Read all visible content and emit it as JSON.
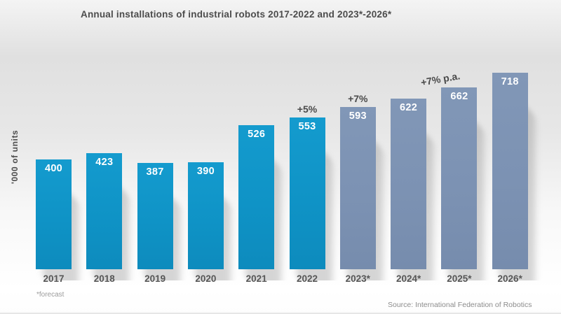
{
  "title": "Annual installations of industrial robots 2017-2022 and 2023*-2026*",
  "y_axis_label": "'000 of units",
  "footnote": "*forecast",
  "source": "Source: International Federation of Robotics",
  "colors": {
    "actual_bar": "#0F93C6",
    "forecast_bar": "#7C92B3",
    "value_label": "#FFFFFF",
    "heading_text": "#4C4C4C",
    "axis_text": "#565656"
  },
  "chart_data": {
    "type": "bar",
    "title": "Annual installations of industrial robots 2017-2022 and 2023*-2026*",
    "ylabel": "'000 of units",
    "xlabel": "",
    "categories": [
      "2017",
      "2018",
      "2019",
      "2020",
      "2021",
      "2022",
      "2023*",
      "2024*",
      "2025*",
      "2026*"
    ],
    "values": [
      400,
      423,
      387,
      390,
      526,
      553,
      593,
      622,
      662,
      718
    ],
    "series": [
      {
        "name": "actual",
        "categories": [
          "2017",
          "2018",
          "2019",
          "2020",
          "2021",
          "2022"
        ],
        "values": [
          400,
          423,
          387,
          390,
          526,
          553
        ]
      },
      {
        "name": "forecast",
        "categories": [
          "2023*",
          "2024*",
          "2025*",
          "2026*"
        ],
        "values": [
          593,
          622,
          662,
          718
        ]
      }
    ],
    "forecast_indices": [
      6,
      7,
      8,
      9
    ],
    "annotations": [
      {
        "label": "+5%",
        "bar_index": 5,
        "rotation_deg": 0
      },
      {
        "label": "+7%",
        "bar_index": 6,
        "rotation_deg": 0
      },
      {
        "label": "+7% p.a.",
        "bar_index": 8,
        "rotation_deg": -10
      }
    ],
    "ylim": [
      0,
      730
    ],
    "grid": false,
    "legend": false,
    "data_labels": "inside-top, white"
  }
}
